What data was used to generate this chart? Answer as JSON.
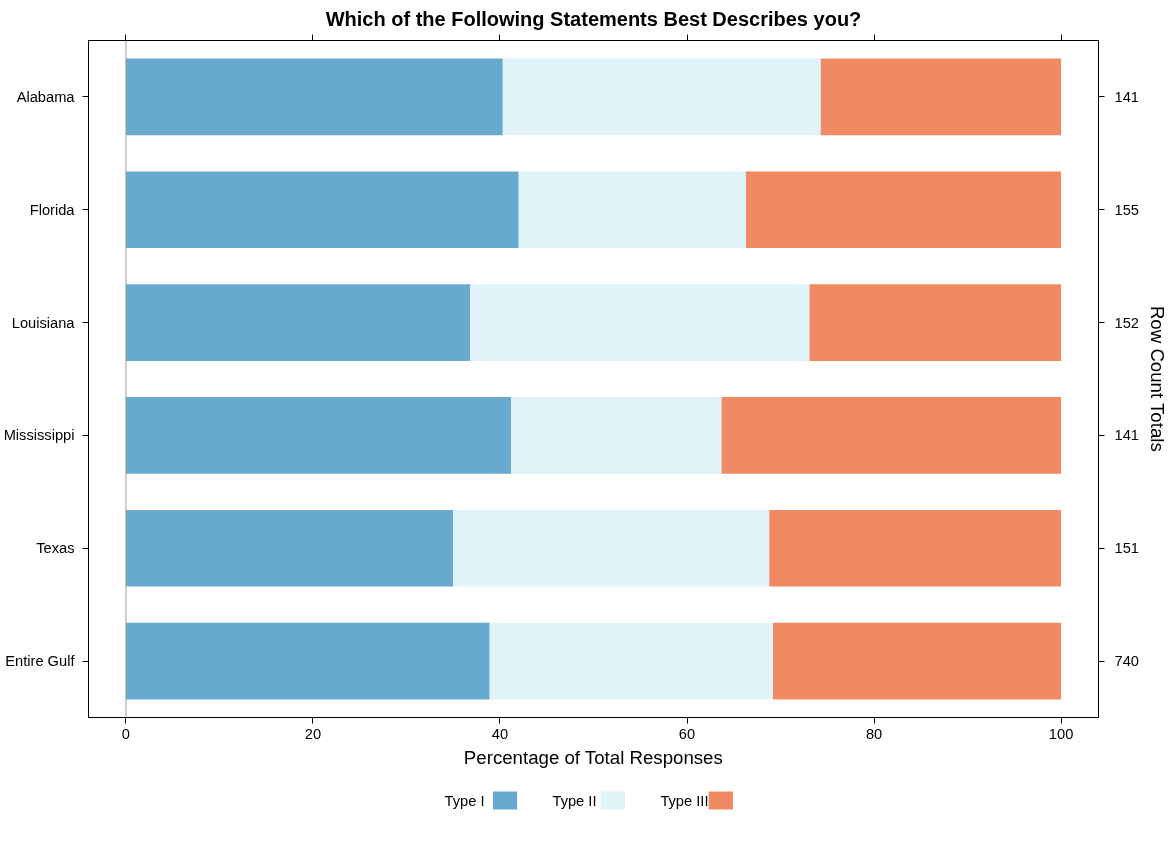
{
  "chart_data": {
    "type": "bar",
    "orientation": "horizontal",
    "stacked": true,
    "title": "Which of the Following Statements Best Describes you?",
    "xlabel": "Percentage of Total Responses",
    "y2label": "Row Count Totals",
    "categories": [
      "Alabama",
      "Florida",
      "Louisiana",
      "Mississippi",
      "Texas",
      "Entire Gulf"
    ],
    "series": [
      {
        "name": "Type I",
        "color": "#67a9cf",
        "values": [
          40.3,
          42.0,
          36.8,
          41.2,
          35.0,
          38.9
        ]
      },
      {
        "name": "Type II",
        "color": "#e0f3f8",
        "values": [
          34.0,
          24.3,
          36.3,
          22.5,
          33.8,
          30.3
        ]
      },
      {
        "name": "Type III",
        "color": "#ef8a62",
        "values": [
          25.7,
          33.7,
          26.9,
          36.3,
          31.2,
          30.8
        ]
      }
    ],
    "annotations": [
      "141",
      "155",
      "152",
      "141",
      "151",
      "740"
    ],
    "xlim": [
      -4,
      104
    ],
    "xticks": [
      0,
      20,
      40,
      60,
      80,
      100
    ],
    "ref_lines": [
      {
        "axis": "x",
        "value": 0,
        "label": null,
        "color": "#a0a0a0"
      }
    ],
    "grid": false,
    "legend": "bottom"
  }
}
